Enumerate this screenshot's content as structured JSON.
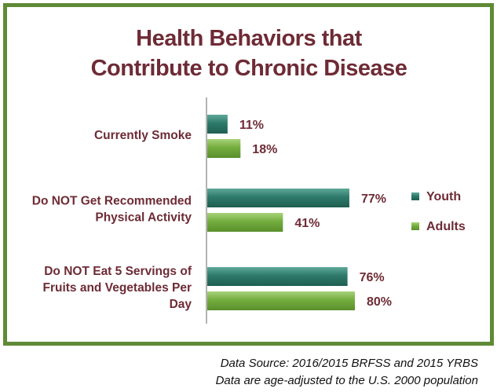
{
  "chart_data": {
    "type": "bar",
    "orientation": "horizontal",
    "title_lines": [
      "Health Behaviors that",
      "Contribute to Chronic Disease"
    ],
    "categories": [
      [
        "Currently Smoke"
      ],
      [
        "Do NOT Get Recommended",
        "Physical Activity"
      ],
      [
        "Do NOT Eat 5 Servings of",
        "Fruits and Vegetables Per",
        "Day"
      ]
    ],
    "series": [
      {
        "name": "Youth",
        "values": [
          11,
          77,
          76
        ],
        "labels": [
          "11%",
          "77%",
          "76%"
        ],
        "color": "#2e7a6a"
      },
      {
        "name": "Adults",
        "values": [
          18,
          41,
          80
        ],
        "labels": [
          "18%",
          "41%",
          "80%"
        ],
        "color": "#74ad3f"
      }
    ],
    "xlim": [
      0,
      100
    ],
    "grid": false,
    "legend_position": "right"
  },
  "footer": {
    "source_line": "Data Source:  2016/2015 BRFSS and 2015 YRBS",
    "note_line": "Data are age-adjusted to the U.S. 2000 population"
  }
}
